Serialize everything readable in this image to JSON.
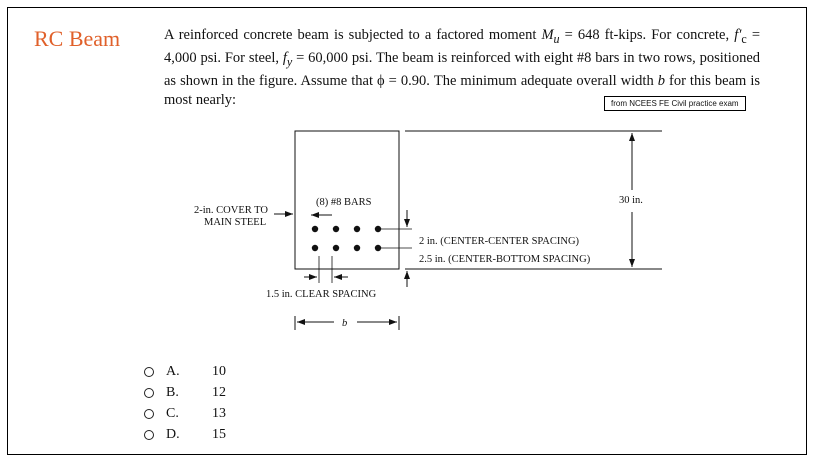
{
  "title": "RC Beam",
  "problem_html": "A reinforced concrete beam is subjected to a factored moment <i>M<sub>u</sub></i> = 648 ft-kips. For concrete, <i>f′</i><sub>c</sub> = 4,000 psi. For steel, <i>f<sub>y</sub></i> = 60,000 psi. The beam is reinforced with eight #8 bars in two rows, positioned as shown in the figure. Assume that ϕ = 0.90. The minimum adequate overall width <i>b</i> for this beam is most nearly:",
  "source": "from NCEES FE Civil practice exam",
  "figure": {
    "cover_line1": "2-in. COVER TO",
    "cover_line2": "MAIN STEEL",
    "bars": "(8) #8 BARS",
    "height": "30 in.",
    "cc_spacing": "2 in. (CENTER-CENTER SPACING)",
    "cb_spacing": "2.5 in. (CENTER-BOTTOM SPACING)",
    "clear_spacing": "1.5 in. CLEAR SPACING",
    "width_symbol": "b"
  },
  "options": [
    {
      "letter": "A.",
      "value": "10"
    },
    {
      "letter": "B.",
      "value": "12"
    },
    {
      "letter": "C.",
      "value": "13"
    },
    {
      "letter": "D.",
      "value": "15"
    }
  ]
}
